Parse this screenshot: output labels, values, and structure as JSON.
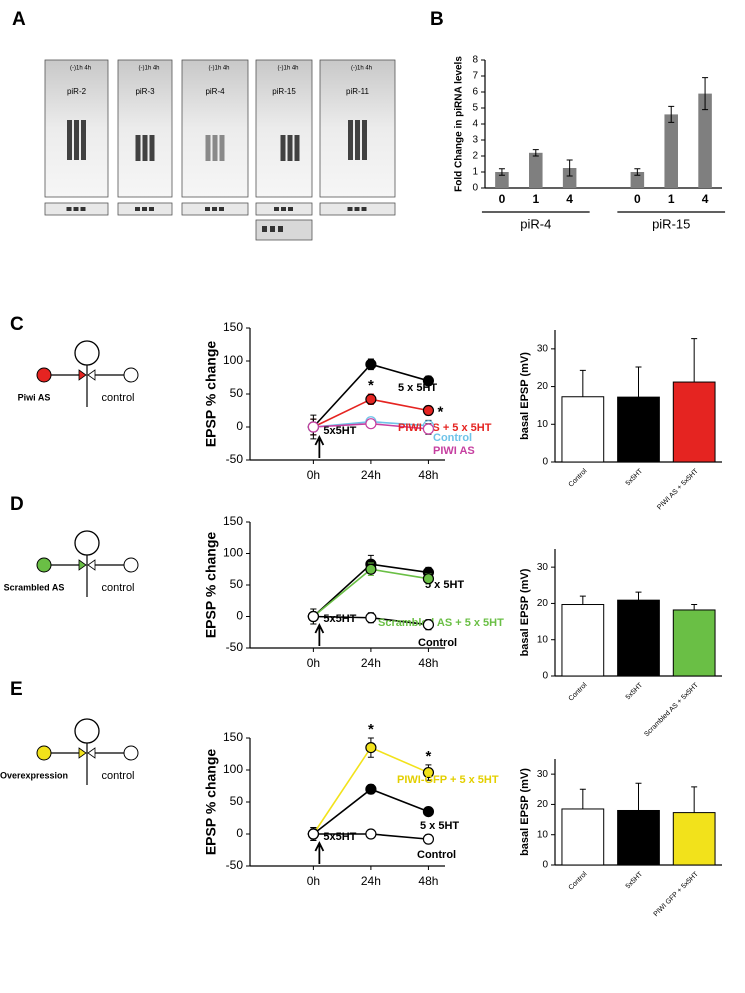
{
  "panel_labels": [
    "A",
    "B",
    "C",
    "D",
    "E"
  ],
  "blots": [
    {
      "header": "(-)1h 4h",
      "name": "piR-2"
    },
    {
      "header": "(-)1h 4h",
      "name": "piR-3"
    },
    {
      "header": "(-)1h 4h",
      "name": "piR-4"
    },
    {
      "header": "(-)1h 4h",
      "name": "piR-15"
    },
    {
      "header": "(-)1h 4h",
      "name": "piR-11"
    }
  ],
  "diagrams": [
    {
      "treatment": "Piwi AS",
      "color": "#e52421",
      "control": "control"
    },
    {
      "treatment": "Scrambled AS",
      "color": "#6abf45",
      "control": "control"
    },
    {
      "treatment": "Overexpression",
      "color": "#f2e21b",
      "control": "control"
    }
  ],
  "chart_data": [
    {
      "type": "bar",
      "ylabel": "Fold Change in piRNA levels",
      "categories": [
        "0",
        "1",
        "4",
        "0",
        "1",
        "4"
      ],
      "groups": [
        {
          "name": "piR-4",
          "size": 3
        },
        {
          "name": "piR-15",
          "size": 3
        }
      ],
      "values": [
        1.0,
        2.2,
        1.25,
        1.0,
        4.6,
        5.9
      ],
      "errors": [
        0.2,
        0.2,
        0.5,
        0.2,
        0.5,
        1.0
      ],
      "color": "#7f7f7f",
      "ylim": [
        0,
        8
      ],
      "yticks": [
        0,
        1,
        2,
        3,
        4,
        5,
        6,
        7,
        8
      ]
    },
    {
      "type": "line",
      "ylabel": "EPSP % change",
      "categories": [
        "0h",
        "24h",
        "48h"
      ],
      "ylim": [
        -50,
        150
      ],
      "yticks": [
        -50,
        0,
        50,
        100,
        150
      ],
      "series": [
        {
          "name": "5 x 5HT",
          "color": "#000000",
          "values": [
            0,
            95,
            70
          ],
          "errors": [
            12,
            8,
            7
          ],
          "hollow": false
        },
        {
          "name": "PIWI AS + 5 x 5HT",
          "color": "#e52421",
          "values": [
            0,
            42,
            25
          ],
          "errors": [
            12,
            8,
            7
          ],
          "hollow": false
        },
        {
          "name": "Control",
          "color": "#6fc3e8",
          "values": [
            0,
            8,
            2
          ],
          "errors": [
            12,
            6,
            8
          ],
          "hollow": true
        },
        {
          "name": "PIWI AS",
          "color": "#c63fa0",
          "values": [
            0,
            5,
            -3
          ],
          "errors": [
            18,
            5,
            8
          ],
          "hollow": true
        }
      ],
      "annotations": [
        {
          "text": "*",
          "series": 1,
          "category": 1
        },
        {
          "text": "*",
          "series": 1,
          "category": 2,
          "side": "right"
        },
        {
          "text": "5x5HT",
          "arrow": true
        }
      ]
    },
    {
      "type": "bar",
      "ylabel": "basal EPSP (mV)",
      "categories": [
        "Control",
        "5x5HT",
        "PIWI AS + 5x5HT"
      ],
      "values": [
        17.3,
        17.2,
        21.2
      ],
      "errors": [
        7,
        8,
        11.5
      ],
      "colors": [
        "#ffffff",
        "#000000",
        "#e52421"
      ],
      "ylim": [
        0,
        35
      ],
      "yticks": [
        0,
        10,
        20,
        30
      ]
    },
    {
      "type": "line",
      "ylabel": "EPSP % change",
      "categories": [
        "0h",
        "24h",
        "48h"
      ],
      "ylim": [
        -50,
        150
      ],
      "yticks": [
        -50,
        0,
        50,
        100,
        150
      ],
      "series": [
        {
          "name": "5 x 5HT",
          "color": "#000000",
          "values": [
            0,
            83,
            70
          ],
          "errors": [
            12,
            14,
            8
          ],
          "hollow": false
        },
        {
          "name": "Scrambled AS + 5 x 5HT",
          "color": "#6abf45",
          "values": [
            0,
            75,
            60
          ],
          "errors": [
            12,
            10,
            8
          ],
          "hollow": false
        },
        {
          "name": "Control",
          "color": "#000000",
          "values": [
            0,
            -2,
            -13
          ],
          "errors": [
            12,
            8,
            8
          ],
          "hollow": true
        }
      ],
      "annotations": [
        {
          "text": "5x5HT",
          "arrow": true
        }
      ]
    },
    {
      "type": "bar",
      "ylabel": "basal EPSP (mV)",
      "categories": [
        "Control",
        "5x5HT",
        "Scrambled AS + 5x5HT"
      ],
      "values": [
        19.7,
        20.9,
        18.2
      ],
      "errors": [
        2.3,
        2.2,
        1.5
      ],
      "colors": [
        "#ffffff",
        "#000000",
        "#6abf45"
      ],
      "ylim": [
        0,
        35
      ],
      "yticks": [
        0,
        10,
        20,
        30
      ]
    },
    {
      "type": "line",
      "ylabel": "EPSP % change",
      "categories": [
        "0h",
        "24h",
        "48h"
      ],
      "ylim": [
        -50,
        150
      ],
      "yticks": [
        -50,
        0,
        50,
        100,
        150
      ],
      "series": [
        {
          "name": "PIWI-GFP + 5 x 5HT",
          "color": "#f2e21b",
          "values": [
            0,
            135,
            96
          ],
          "errors": [
            10,
            15,
            12
          ],
          "hollow": false
        },
        {
          "name": "5 x 5HT",
          "color": "#000000",
          "values": [
            0,
            70,
            35
          ],
          "errors": [
            10,
            7,
            6
          ],
          "hollow": false
        },
        {
          "name": "Control",
          "color": "#000000",
          "values": [
            0,
            0,
            -8
          ],
          "errors": [
            10,
            6,
            7
          ],
          "hollow": true
        }
      ],
      "annotations": [
        {
          "text": "*",
          "series": 0,
          "category": 1
        },
        {
          "text": "*",
          "series": 0,
          "category": 2
        },
        {
          "text": "5x5HT",
          "arrow": true
        }
      ]
    },
    {
      "type": "bar",
      "ylabel": "basal EPSP (mV)",
      "categories": [
        "Control",
        "5x5HT",
        "PIWI GFP + 5x5HT"
      ],
      "values": [
        18.5,
        18,
        17.3
      ],
      "errors": [
        6.5,
        9,
        8.5
      ],
      "colors": [
        "#ffffff",
        "#000000",
        "#f2e21b"
      ],
      "ylim": [
        0,
        35
      ],
      "yticks": [
        0,
        10,
        20,
        30
      ]
    }
  ]
}
